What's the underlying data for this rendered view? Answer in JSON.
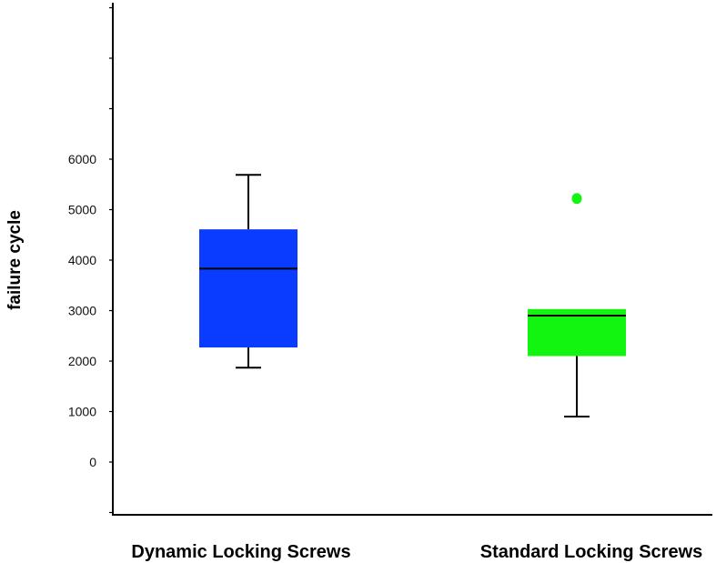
{
  "chart_data": {
    "type": "boxplot",
    "title": "",
    "xlabel": "",
    "ylabel": "failure cycle",
    "ylim": [
      -1000,
      9000
    ],
    "yticks": [
      0,
      1000,
      2000,
      3000,
      4000,
      5000,
      6000
    ],
    "y_minor_ticks": [
      -1000,
      7000,
      8000,
      9000
    ],
    "grid": false,
    "categories": [
      "Dynamic Locking Screws",
      "Standard Locking Screws"
    ],
    "series": [
      {
        "name": "Dynamic Locking Screws",
        "color": "#0a3cff",
        "whisker_low": 1870,
        "q1": 2270,
        "median": 3830,
        "q3": 4610,
        "whisker_high": 5690,
        "outliers": []
      },
      {
        "name": "Standard Locking Screws",
        "color": "#11f511",
        "whisker_low": 900,
        "q1": 2100,
        "median": 2900,
        "q3": 3030,
        "whisker_high": 3030,
        "outliers": [
          5220
        ]
      }
    ]
  }
}
